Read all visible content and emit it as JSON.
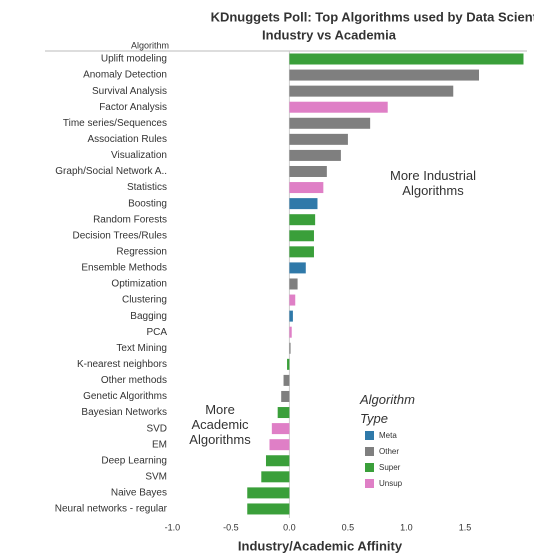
{
  "chart_data": {
    "type": "bar",
    "orientation": "horizontal",
    "title": "KDnuggets Poll: Top Algorithms used by Data Scientists",
    "subtitle": "Industry vs Academia",
    "y_label": "Algorithm",
    "x_label": "Industry/Academic Affinity",
    "categories": [
      "Uplift modeling",
      "Anomaly Detection",
      "Survival Analysis",
      "Factor Analysis",
      "Time series/Sequences",
      "Association Rules",
      "Visualization",
      "Graph/Social Network A..",
      "Statistics",
      "Boosting",
      "Random Forests",
      "Decision Trees/Rules",
      "Regression",
      "Ensemble Methods",
      "Optimization",
      "Clustering",
      "Bagging",
      "PCA",
      "Text Mining",
      "K-nearest neighbors",
      "Other methods",
      "Genetic Algorithms",
      "Bayesian Networks",
      "SVD",
      "EM",
      "Deep Learning",
      "SVM",
      "Naive Bayes",
      "Neural networks - regular"
    ],
    "values": [
      2.0,
      1.62,
      1.4,
      0.84,
      0.69,
      0.5,
      0.44,
      0.32,
      0.29,
      0.24,
      0.22,
      0.21,
      0.21,
      0.14,
      0.07,
      0.05,
      0.03,
      0.02,
      0.01,
      -0.02,
      -0.05,
      -0.07,
      -0.1,
      -0.15,
      -0.17,
      -0.2,
      -0.24,
      -0.36,
      -0.36
    ],
    "bar_types": [
      "Super",
      "Other",
      "Other",
      "Unsup",
      "Other",
      "Other",
      "Other",
      "Other",
      "Unsup",
      "Meta",
      "Super",
      "Super",
      "Super",
      "Meta",
      "Other",
      "Unsup",
      "Meta",
      "Unsup",
      "Other",
      "Super",
      "Other",
      "Other",
      "Super",
      "Unsup",
      "Unsup",
      "Super",
      "Super",
      "Super",
      "Super"
    ],
    "legend_title": "Algorithm Type",
    "legend": [
      {
        "name": "Meta",
        "color": "#2f79a9"
      },
      {
        "name": "Other",
        "color": "#7f7f7f"
      },
      {
        "name": "Super",
        "color": "#3a9f3a"
      },
      {
        "name": "Unsup",
        "color": "#df7fc6"
      }
    ],
    "xlim": [
      -1.02,
      2.03
    ],
    "xticks": [
      {
        "value": -1,
        "label": "-1.0"
      },
      -0.5,
      {
        "value": 0,
        "label": "0.0"
      },
      0.5,
      {
        "value": 1,
        "label": "1.0"
      },
      1.5
    ],
    "annotations": [
      "More Industrial Algorithms",
      "More Academic Algorithms"
    ]
  }
}
